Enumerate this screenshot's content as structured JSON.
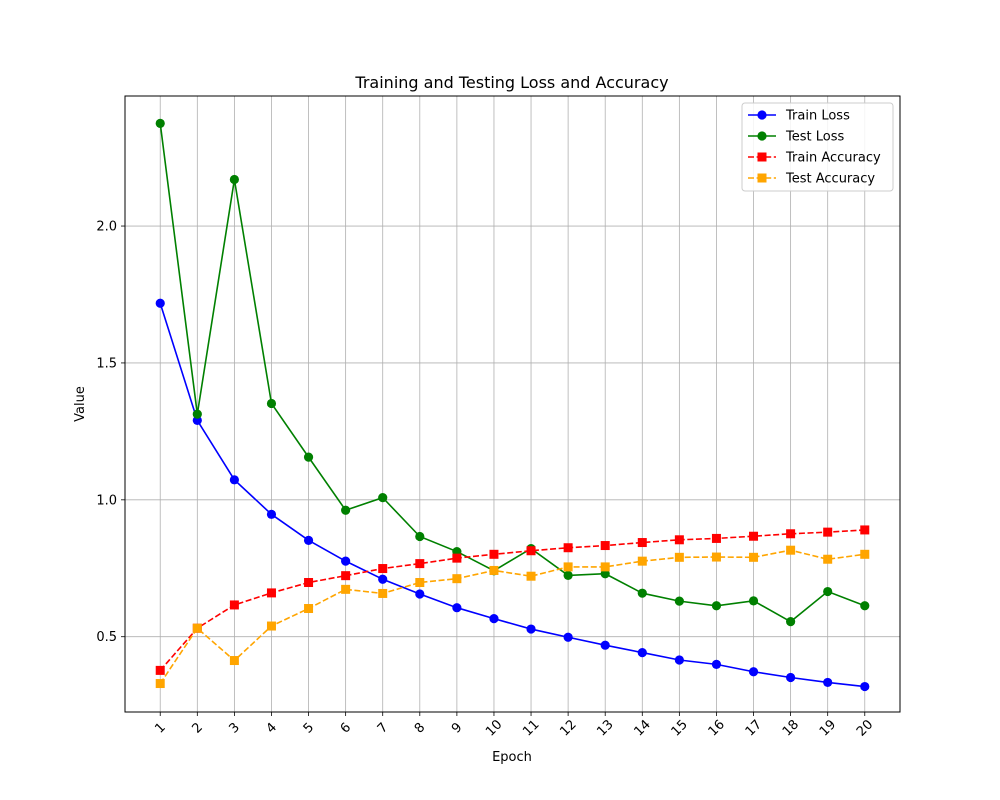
{
  "chart_data": {
    "type": "line",
    "title": "Training and Testing Loss and Accuracy",
    "xlabel": "Epoch",
    "ylabel": "Value",
    "x": [
      1,
      2,
      3,
      4,
      5,
      6,
      7,
      8,
      9,
      10,
      11,
      12,
      13,
      14,
      15,
      16,
      17,
      18,
      19,
      20
    ],
    "x_tick_labels": [
      "1",
      "2",
      "3",
      "4",
      "5",
      "6",
      "7",
      "8",
      "9",
      "10",
      "11",
      "12",
      "13",
      "14",
      "15",
      "16",
      "17",
      "18",
      "19",
      "20"
    ],
    "x_tick_rotation_deg": 45,
    "xlim": [
      0.05,
      20.95
    ],
    "ylim": [
      0.225,
      2.475
    ],
    "y_ticks": [
      0.5,
      1.0,
      1.5,
      2.0
    ],
    "y_tick_labels": [
      "0.5",
      "1.0",
      "1.5",
      "2.0"
    ],
    "grid": true,
    "legend_position": "top-right",
    "series": [
      {
        "name": "Train Loss",
        "color": "#0000ff",
        "line_style": "solid",
        "marker": "circle",
        "values": [
          1.718,
          1.29,
          1.073,
          0.947,
          0.852,
          0.776,
          0.71,
          0.656,
          0.606,
          0.566,
          0.528,
          0.498,
          0.469,
          0.442,
          0.415,
          0.399,
          0.372,
          0.351,
          0.333,
          0.318
        ]
      },
      {
        "name": "Test Loss",
        "color": "#008000",
        "line_style": "solid",
        "marker": "circle",
        "values": [
          2.375,
          1.313,
          2.17,
          1.352,
          1.156,
          0.962,
          1.008,
          0.866,
          0.811,
          0.741,
          0.822,
          0.724,
          0.73,
          0.659,
          0.63,
          0.613,
          0.631,
          0.555,
          0.665,
          0.613
        ]
      },
      {
        "name": "Train Accuracy",
        "color": "#ff0000",
        "line_style": "dashed",
        "marker": "square",
        "values": [
          0.377,
          0.531,
          0.616,
          0.66,
          0.698,
          0.723,
          0.749,
          0.767,
          0.787,
          0.801,
          0.814,
          0.825,
          0.833,
          0.844,
          0.854,
          0.859,
          0.867,
          0.876,
          0.882,
          0.89
        ]
      },
      {
        "name": "Test Accuracy",
        "color": "#ffa500",
        "line_style": "dashed",
        "marker": "square",
        "values": [
          0.329,
          0.531,
          0.413,
          0.539,
          0.603,
          0.673,
          0.658,
          0.698,
          0.712,
          0.742,
          0.721,
          0.755,
          0.755,
          0.776,
          0.79,
          0.791,
          0.79,
          0.816,
          0.783,
          0.801
        ]
      }
    ]
  }
}
